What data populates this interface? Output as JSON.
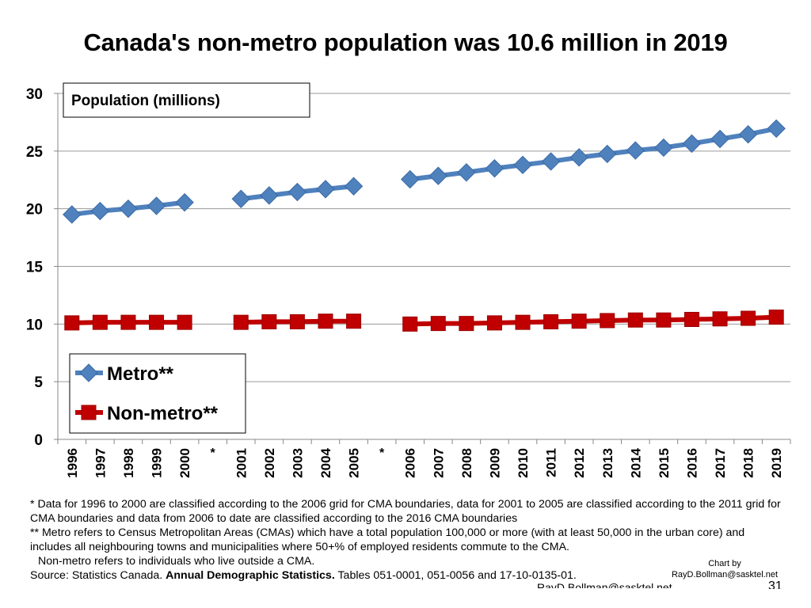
{
  "slide": {
    "title": "Canada's non-metro population was 10.6 million in 2019",
    "footnotes": {
      "line1": "* Data for 1996 to 2000 are classified according to the 2006 grid for CMA boundaries, data for 2001 to 2005 are classified according to the 2011 grid for CMA boundaries and data from 2006 to date are classified according to the 2016 CMA boundaries",
      "line2": "** Metro refers to Census Metropolitan Areas (CMAs) which have a total population 100,000 or more (with at least 50,000 in the urban core) and includes all neighbouring towns and municipalities where 50+% of employed residents commute to the CMA.",
      "line3": "Non-metro refers to individuals who live outside a CMA.",
      "source_prefix": "Source: Statistics Canada. ",
      "source_bold": "Annual Demographic Statistics.",
      "source_suffix": " Tables 051-0001, 051-0056 and 17-10-0135-01."
    },
    "credit_line1": "Chart by",
    "credit_line2": "RayD.Bollman@sasktel.net",
    "ghost_text": "RayD.Bollman@sasktel.net",
    "page_number": "31"
  },
  "colors": {
    "metro": "#4f81bd",
    "metro_edge": "#3a6aa6",
    "nonmetro": "#c00000",
    "nonmetro_edge": "#9c0000",
    "grid": "#9a9a9a"
  },
  "chart_data": {
    "type": "line",
    "title": "Canada's non-metro population was 10.6 million in 2019",
    "ylabel": "Population (millions)",
    "xlabel": "",
    "ylim": [
      0,
      30
    ],
    "yticks": [
      0,
      5,
      10,
      15,
      20,
      25,
      30
    ],
    "grid": true,
    "legend_position": "bottom-left",
    "categories": [
      "1996",
      "1997",
      "1998",
      "1999",
      "2000",
      "*",
      "2001",
      "2002",
      "2003",
      "2004",
      "2005",
      "*",
      "2006",
      "2007",
      "2008",
      "2009",
      "2010",
      "2011",
      "2012",
      "2013",
      "2014",
      "2015",
      "2016",
      "2017",
      "2018",
      "2019"
    ],
    "series": [
      {
        "name": "Metro**",
        "marker": "diamond",
        "values": [
          19.5,
          19.8,
          20.0,
          20.25,
          20.55,
          null,
          20.85,
          21.15,
          21.45,
          21.7,
          21.95,
          null,
          22.55,
          22.85,
          23.15,
          23.5,
          23.8,
          24.1,
          24.45,
          24.75,
          25.05,
          25.3,
          25.65,
          26.05,
          26.45,
          26.95
        ]
      },
      {
        "name": "Non-metro**",
        "marker": "square",
        "values": [
          10.1,
          10.15,
          10.15,
          10.15,
          10.15,
          null,
          10.15,
          10.2,
          10.2,
          10.25,
          10.25,
          null,
          10.0,
          10.05,
          10.05,
          10.1,
          10.15,
          10.2,
          10.25,
          10.3,
          10.35,
          10.35,
          10.4,
          10.45,
          10.5,
          10.6
        ]
      }
    ]
  }
}
